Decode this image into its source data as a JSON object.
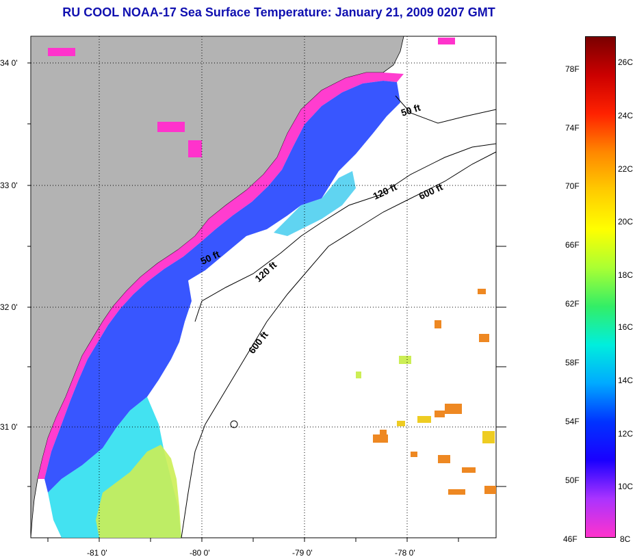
{
  "title": "RU COOL  NOAA-17  Sea Surface Temperature:  January 21, 2009 0207 GMT",
  "map": {
    "lat_labels": [
      "34 0'",
      "33 0'",
      "32 0'",
      "31 0'"
    ],
    "lon_labels": [
      "-81 0'",
      "-80 0'",
      "-79 0'",
      "-78 0'"
    ],
    "isobath_labels": [
      "50 ft",
      "120 ft",
      "600 ft",
      "50 ft",
      "120 ft",
      "600 ft"
    ],
    "colors": {
      "land": "#b3b3b3",
      "ocean_no_data": "#ffffff",
      "coast_warm": "#ff33cc",
      "mid_shelf": "#2244ff",
      "outer_shelf": "#22ddee",
      "south_shelf": "#ccee55",
      "patches": "#ee8822"
    }
  },
  "colorbar": {
    "fahrenheit_labels": [
      "78F",
      "74F",
      "70F",
      "66F",
      "62F",
      "58F",
      "54F",
      "50F",
      "46F"
    ],
    "celsius_labels": [
      "26C",
      "24C",
      "22C",
      "20C",
      "18C",
      "16C",
      "14C",
      "12C",
      "10C",
      "8C"
    ],
    "gradient_colors": [
      "#7a0000",
      "#cc0000",
      "#ff2200",
      "#ff8800",
      "#ffcc00",
      "#ffff00",
      "#aaff33",
      "#33ee66",
      "#00eedd",
      "#00aaff",
      "#0033ff",
      "#1a00ff",
      "#aa33ff",
      "#ff33cc"
    ]
  }
}
